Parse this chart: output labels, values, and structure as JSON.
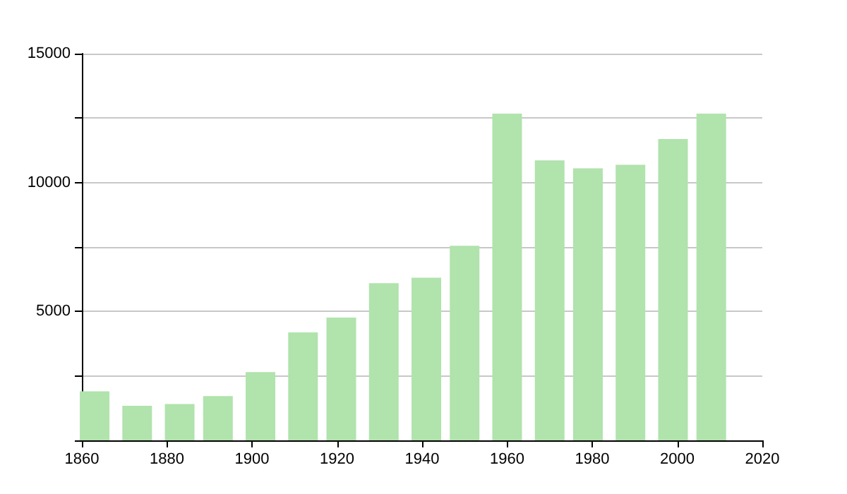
{
  "chart_data": {
    "type": "bar",
    "x": [
      1863,
      1873,
      1883,
      1892,
      1902,
      1912,
      1921,
      1931,
      1941,
      1950,
      1960,
      1970,
      1979,
      1989,
      1999,
      2008
    ],
    "values": [
      1900,
      1340,
      1410,
      1720,
      2650,
      4190,
      4760,
      6100,
      6310,
      7550,
      12670,
      10860,
      10550,
      10690,
      11690,
      12670
    ],
    "color": "#b1e3ad",
    "xlim": [
      1860,
      2020
    ],
    "xticks": [
      1860,
      1880,
      1900,
      1920,
      1940,
      1960,
      1980,
      2000,
      2020
    ],
    "ylim": [
      0,
      15000
    ],
    "yticks": [
      {
        "value": 0,
        "label": null
      },
      {
        "value": 2500,
        "label": null
      },
      5000,
      {
        "value": 7500,
        "label": null
      },
      10000,
      {
        "value": 12500,
        "label": null
      },
      15000
    ],
    "grid": "y"
  }
}
